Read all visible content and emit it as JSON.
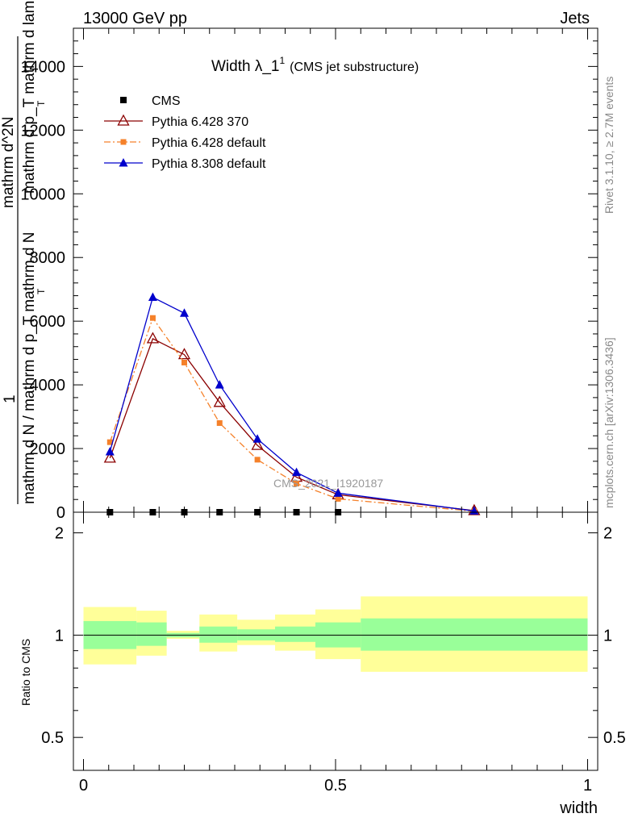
{
  "header": {
    "left": "13000 GeV pp",
    "right": "Jets"
  },
  "title": {
    "main": "Width λ_1",
    "sup": "1",
    "sub": "(CMS jet substructure)"
  },
  "side_labels": {
    "rivet": "Rivet 3.1.10, ≥ 2.7M events",
    "mcplots": "mcplots.cern.ch [arXiv:1306.3436]"
  },
  "watermark": "CMS_2021_I1920187",
  "ylabel": {
    "one": "1",
    "denominator": "mathrm d N / mathrm d p_T mathrm d N",
    "numerator_a": "mathrm d^2N",
    "numerator_b": "mathrm d p_T mathrm d lambda",
    "sub_T": "T",
    "sub_T2": "T"
  },
  "ratio_ylabel": "Ratio to CMS",
  "xlabel": "width",
  "chart_data": [
    {
      "type": "line",
      "panel": "main",
      "x_range": [
        -0.02,
        1.02
      ],
      "y_range": [
        0,
        15200
      ],
      "x_ticks": [
        0,
        0.5,
        1
      ],
      "x_tick_labels": [
        "0",
        "0.5",
        "1"
      ],
      "y_ticks": [
        0,
        2000,
        4000,
        6000,
        8000,
        10000,
        12000,
        14000
      ],
      "y_tick_labels": [
        "0",
        "2000",
        "4000",
        "6000",
        "8000",
        "10000",
        "12000",
        "14000"
      ],
      "legend_position": "top-left",
      "series": [
        {
          "name": "CMS",
          "style": "data",
          "color": "#000000",
          "x": [
            0.0525,
            0.1375,
            0.2,
            0.27,
            0.345,
            0.4225,
            0.505
          ],
          "y": [
            0,
            0,
            0,
            0,
            0,
            0,
            0
          ]
        },
        {
          "name": "Pythia 6.428 370",
          "style": "open-triangle-solid",
          "color": "#8b0000",
          "x": [
            0.0525,
            0.1375,
            0.2,
            0.27,
            0.345,
            0.4225,
            0.505,
            0.775
          ],
          "y": [
            1700,
            5450,
            4950,
            3450,
            2100,
            1100,
            550,
            50
          ]
        },
        {
          "name": "Pythia 6.428 default",
          "style": "square-dashdot",
          "color": "#f5812a",
          "x": [
            0.0525,
            0.1375,
            0.2,
            0.27,
            0.345,
            0.4225,
            0.505,
            0.775
          ],
          "y": [
            2200,
            6100,
            4700,
            2800,
            1650,
            900,
            420,
            30
          ]
        },
        {
          "name": "Pythia 8.308 default",
          "style": "filled-triangle-solid",
          "color": "#0000cc",
          "x": [
            0.0525,
            0.1375,
            0.2,
            0.27,
            0.345,
            0.4225,
            0.505,
            0.775
          ],
          "y": [
            1900,
            6750,
            6250,
            4000,
            2300,
            1250,
            600,
            40
          ]
        }
      ]
    },
    {
      "type": "area",
      "panel": "ratio",
      "y_scale": "log",
      "y_range": [
        0.4,
        2.3
      ],
      "y_ticks": [
        0.5,
        1,
        2
      ],
      "y_tick_labels": [
        "0.5",
        "1",
        "2"
      ],
      "bins": [
        [
          0,
          0.105
        ],
        [
          0.105,
          0.165
        ],
        [
          0.165,
          0.23
        ],
        [
          0.23,
          0.305
        ],
        [
          0.305,
          0.38
        ],
        [
          0.38,
          0.46
        ],
        [
          0.46,
          0.55
        ],
        [
          0.55,
          1.0
        ]
      ],
      "band_inner": {
        "color": "#99ff99",
        "lo": [
          0.91,
          0.93,
          0.985,
          0.95,
          0.965,
          0.955,
          0.92,
          0.9
        ],
        "hi": [
          1.1,
          1.09,
          1.015,
          1.06,
          1.04,
          1.06,
          1.09,
          1.12
        ]
      },
      "band_outer": {
        "color": "#ffff99",
        "lo": [
          0.82,
          0.87,
          0.975,
          0.895,
          0.935,
          0.9,
          0.85,
          0.78
        ],
        "hi": [
          1.21,
          1.18,
          1.03,
          1.15,
          1.11,
          1.15,
          1.19,
          1.3
        ]
      },
      "reference": 1
    }
  ]
}
